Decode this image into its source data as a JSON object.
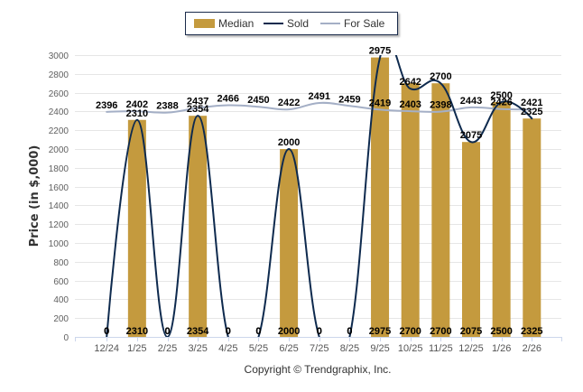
{
  "chart_data": {
    "type": "bar",
    "title": "",
    "xlabel": "",
    "ylabel": "Price (in $,000)",
    "ylim": [
      0,
      3000
    ],
    "yticks": [
      0,
      200,
      400,
      600,
      800,
      1000,
      1200,
      1400,
      1600,
      1800,
      2000,
      2200,
      2400,
      2600,
      2800,
      3000
    ],
    "grid": true,
    "legend_position": "top-center",
    "categories": [
      "12/24",
      "1/25",
      "2/25",
      "3/25",
      "4/25",
      "5/25",
      "6/25",
      "7/25",
      "8/25",
      "9/25",
      "10/25",
      "11/25",
      "12/25",
      "1/26",
      "2/26"
    ],
    "series": [
      {
        "name": "Median",
        "type": "bar",
        "color": "#c49a3e",
        "values": [
          0,
          2310,
          0,
          2354,
          0,
          0,
          2000,
          0,
          0,
          2975,
          2700,
          2700,
          2075,
          2500,
          2325
        ]
      },
      {
        "name": "Sold",
        "type": "line",
        "color": "#0e2a4e",
        "values": [
          0,
          2310,
          0,
          2354,
          0,
          0,
          2000,
          0,
          0,
          2975,
          2642,
          2700,
          2075,
          2500,
          2325
        ]
      },
      {
        "name": "For Sale",
        "type": "line",
        "color": "#a4afc6",
        "values": [
          2396,
          2402,
          2388,
          2437,
          2466,
          2450,
          2422,
          2491,
          2459,
          2419,
          2403,
          2398,
          2443,
          2426,
          2421
        ]
      }
    ]
  },
  "footer": {
    "copyright": "Copyright © Trendgraphix, Inc."
  }
}
